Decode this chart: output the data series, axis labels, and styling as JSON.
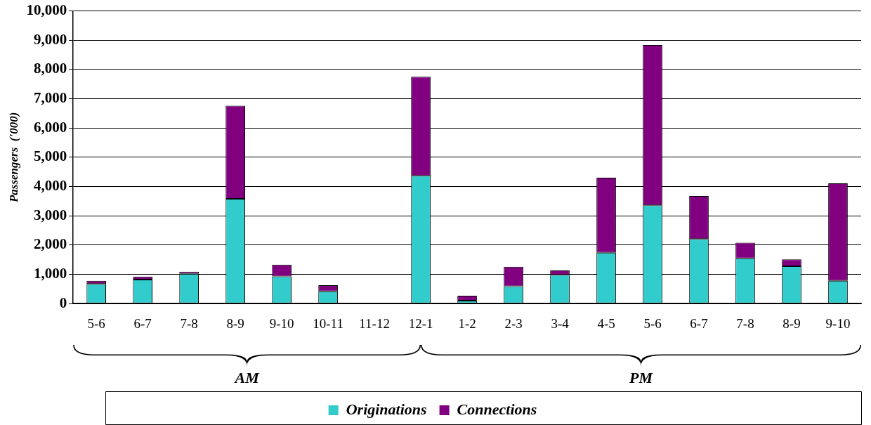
{
  "chart_data": {
    "type": "bar",
    "stacked": true,
    "ylabel": "Passengers  ('000)",
    "categories": [
      "5-6",
      "6-7",
      "7-8",
      "8-9",
      "9-10",
      "10-11",
      "11-12",
      "12-1",
      "1-2",
      "2-3",
      "3-4",
      "4-5",
      "5-6",
      "6-7",
      "7-8",
      "8-9",
      "9-10"
    ],
    "series": [
      {
        "name": "Originations",
        "color": "#33cccc",
        "values": [
          670,
          820,
          1020,
          3580,
          930,
          420,
          0,
          4370,
          100,
          590,
          980,
          1740,
          3360,
          2210,
          1550,
          1280,
          780
        ]
      },
      {
        "name": "Connections",
        "color": "#800080",
        "values": [
          110,
          100,
          70,
          3180,
          400,
          210,
          0,
          3380,
          170,
          670,
          150,
          2560,
          5480,
          1470,
          530,
          230,
          3330
        ]
      }
    ],
    "ylim": [
      0,
      10000
    ],
    "yticks": [
      {
        "value": 0,
        "label": "0"
      },
      {
        "value": 1000,
        "label": "1,000"
      },
      {
        "value": 2000,
        "label": "2,000"
      },
      {
        "value": 3000,
        "label": "3,000"
      },
      {
        "value": 4000,
        "label": "4,000"
      },
      {
        "value": 5000,
        "label": "5,000"
      },
      {
        "value": 6000,
        "label": "6,000"
      },
      {
        "value": 7000,
        "label": "7,000"
      },
      {
        "value": 8000,
        "label": "8,000"
      },
      {
        "value": 9000,
        "label": "9,000"
      },
      {
        "value": 10000,
        "label": "10,000"
      }
    ],
    "grid": "y",
    "legend": "bottom",
    "annotations": [
      "AM",
      "PM"
    ]
  }
}
